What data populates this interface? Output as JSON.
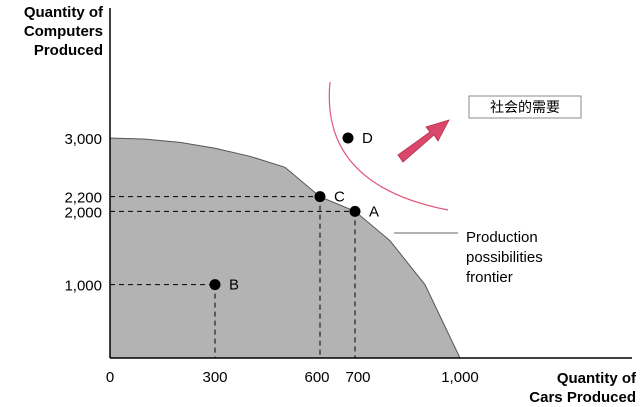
{
  "chart_data": {
    "type": "area",
    "xlabel_lines": [
      "Quantity of",
      "Cars Produced"
    ],
    "ylabel_lines": [
      "Quantity of",
      "Computers",
      "Produced"
    ],
    "xlim": [
      0,
      1000
    ],
    "ylim": [
      0,
      3000
    ],
    "x_ticks": [
      {
        "value": 0,
        "label": "0"
      },
      {
        "value": 300,
        "label": "300"
      },
      {
        "value": 600,
        "label": "600"
      },
      {
        "value": 700,
        "label": "700"
      },
      {
        "value": 1000,
        "label": "1,000"
      }
    ],
    "y_ticks": [
      {
        "value": 1000,
        "label": "1,000"
      },
      {
        "value": 2000,
        "label": "2,000"
      },
      {
        "value": 2200,
        "label": "2,200"
      },
      {
        "value": 3000,
        "label": "3,000"
      }
    ],
    "frontier": {
      "x": [
        0,
        100,
        200,
        300,
        400,
        500,
        600,
        700,
        800,
        900,
        1000
      ],
      "y": [
        3000,
        2985,
        2940,
        2860,
        2750,
        2600,
        2200,
        2000,
        1600,
        1000,
        0
      ]
    },
    "points": [
      {
        "label": "A",
        "x": 700,
        "y": 2000
      },
      {
        "label": "B",
        "x": 300,
        "y": 1000
      },
      {
        "label": "C",
        "x": 600,
        "y": 2200
      },
      {
        "label": "D",
        "x": 680,
        "y": 3000
      }
    ],
    "frontier_annotation_lines": [
      "Production",
      "possibilities",
      "frontier"
    ],
    "society_box_text": "社会的需要",
    "colors": {
      "fill": "#b3b3b3",
      "arc": "#e05a7a",
      "arrow": "#d9486a",
      "dashed": "#000000"
    }
  }
}
